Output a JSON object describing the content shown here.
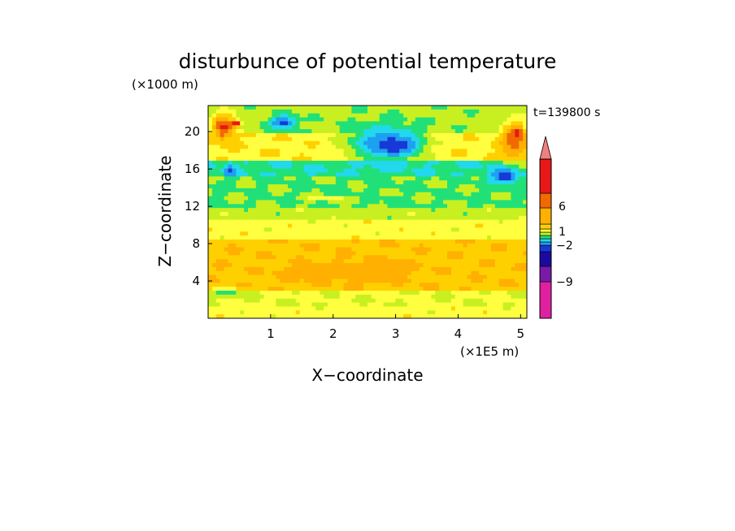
{
  "chart_data": {
    "type": "heatmap",
    "title": "disturbunce of potential temperature",
    "xlabel": "X−coordinate",
    "ylabel": "Z−coordinate",
    "x_unit": "(×1E5 m)",
    "y_unit": "(×1000 m)",
    "time_label": "t=139800 s",
    "xlim": [
      0,
      5.1
    ],
    "ylim": [
      0,
      22.8
    ],
    "x_ticks": [
      1,
      2,
      3,
      4,
      5
    ],
    "y_ticks": [
      4,
      8,
      12,
      16,
      20
    ],
    "colorbar": {
      "levels": [
        -9,
        -2,
        1,
        6
      ],
      "colors": [
        "#e020a0",
        "#7a1aa8",
        "#1a0aa0",
        "#1838d8",
        "#1ea0f0",
        "#22d8ec",
        "#22e078",
        "#c8f020",
        "#ffff40",
        "#ffd000",
        "#ffb000",
        "#f06a00",
        "#e81818",
        "#f08080"
      ],
      "extend": "max"
    },
    "blobs": [
      {
        "x": 0.25,
        "y": 20.5,
        "rx": 0.22,
        "ry": 1.6,
        "level": 12
      },
      {
        "x": 0.45,
        "y": 20.9,
        "rx": 0.08,
        "ry": 0.4,
        "level": 13
      },
      {
        "x": 4.9,
        "y": 19.0,
        "rx": 0.25,
        "ry": 2.6,
        "level": 11
      },
      {
        "x": 4.95,
        "y": 19.8,
        "rx": 0.1,
        "ry": 0.8,
        "level": 12
      },
      {
        "x": 2.8,
        "y": 18.8,
        "rx": 0.7,
        "ry": 2.2,
        "level": 4
      },
      {
        "x": 3.0,
        "y": 18.5,
        "rx": 0.45,
        "ry": 1.4,
        "level": 3
      },
      {
        "x": 1.2,
        "y": 21.0,
        "rx": 0.25,
        "ry": 0.8,
        "level": 3
      },
      {
        "x": 0.35,
        "y": 15.8,
        "rx": 0.1,
        "ry": 0.8,
        "level": 3
      },
      {
        "x": 4.75,
        "y": 15.2,
        "rx": 0.28,
        "ry": 1.0,
        "level": 3
      },
      {
        "x": 1.9,
        "y": 12.8,
        "rx": 0.5,
        "ry": 0.3,
        "level": 8
      },
      {
        "x": 2.5,
        "y": 5.0,
        "rx": 0.9,
        "ry": 1.5,
        "level": 10
      },
      {
        "x": 1.4,
        "y": 4.8,
        "rx": 0.4,
        "ry": 0.8,
        "level": 10
      },
      {
        "x": 0.3,
        "y": 2.7,
        "rx": 0.3,
        "ry": 0.6,
        "level": 6
      }
    ]
  }
}
